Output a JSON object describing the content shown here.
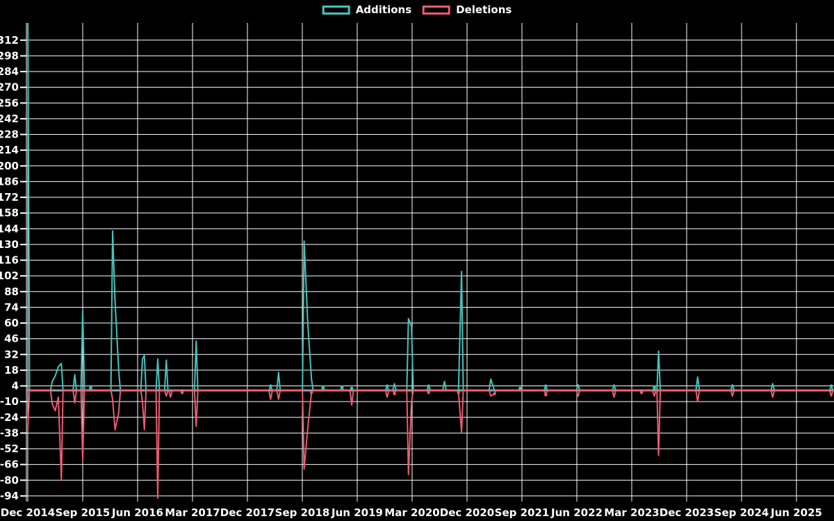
{
  "legend": {
    "additions_label": "Additions",
    "deletions_label": "Deletions"
  },
  "colors": {
    "background": "#000000",
    "grid": "#ffffff",
    "axis_text": "#ffffff",
    "zero_line": "#8ba3af",
    "additions": "#45c4bc",
    "deletions": "#ef5b70"
  },
  "chart_data": {
    "type": "line",
    "title": "",
    "xlabel": "",
    "ylabel": "",
    "legend_position": "top-center",
    "grid": true,
    "x_unit": "months since Dec 2014",
    "x_tick_labels": [
      "Dec 2014",
      "Sep 2015",
      "Jun 2016",
      "Mar 2017",
      "Dec 2017",
      "Sep 2018",
      "Jun 2019",
      "Mar 2020",
      "Dec 2020",
      "Sep 2021",
      "Jun 2022",
      "Mar 2023",
      "Dec 2023",
      "Sep 2024",
      "Jun 2025"
    ],
    "x_tick_months": [
      0,
      9,
      18,
      27,
      36,
      45,
      54,
      63,
      72,
      81,
      90,
      99,
      108,
      117,
      126
    ],
    "y_tick_labels": [
      312,
      298,
      284,
      270,
      256,
      242,
      228,
      214,
      200,
      186,
      172,
      158,
      144,
      130,
      116,
      102,
      88,
      74,
      60,
      46,
      32,
      18,
      4,
      -10,
      -24,
      -38,
      -52,
      -66,
      -80,
      -94
    ],
    "ylim": [
      -99,
      327
    ],
    "series": [
      {
        "name": "Additions",
        "color": "#45c4bc",
        "points": [
          {
            "m": 0,
            "v": 340
          },
          {
            "m": 4.0,
            "v": 8
          },
          {
            "m": 4.5,
            "v": 13
          },
          {
            "m": 5.0,
            "v": 21
          },
          {
            "m": 5.5,
            "v": 24
          },
          {
            "m": 7.7,
            "v": 14
          },
          {
            "m": 9.0,
            "v": 71
          },
          {
            "m": 10.3,
            "v": 3
          },
          {
            "m": 13.9,
            "v": 142
          },
          {
            "m": 14.3,
            "v": 80
          },
          {
            "m": 14.9,
            "v": 18
          },
          {
            "m": 18.8,
            "v": 28
          },
          {
            "m": 19.1,
            "v": 31
          },
          {
            "m": 21.3,
            "v": 28
          },
          {
            "m": 22.7,
            "v": 27
          },
          {
            "m": 23.4,
            "v": 0
          },
          {
            "m": 25.3,
            "v": 0
          },
          {
            "m": 27.6,
            "v": 44
          },
          {
            "m": 39.8,
            "v": 4
          },
          {
            "m": 41.1,
            "v": 16
          },
          {
            "m": 45.3,
            "v": 133
          },
          {
            "m": 45.9,
            "v": 59
          },
          {
            "m": 46.5,
            "v": 10
          },
          {
            "m": 48.4,
            "v": 3
          },
          {
            "m": 51.5,
            "v": 3
          },
          {
            "m": 53.1,
            "v": 2
          },
          {
            "m": 58.9,
            "v": 4
          },
          {
            "m": 60.1,
            "v": 6
          },
          {
            "m": 62.4,
            "v": 64
          },
          {
            "m": 62.9,
            "v": 57
          },
          {
            "m": 65.7,
            "v": 4
          },
          {
            "m": 68.3,
            "v": 8
          },
          {
            "m": 70.6,
            "v": 0
          },
          {
            "m": 71.1,
            "v": 106
          },
          {
            "m": 75.9,
            "v": 10
          },
          {
            "m": 76.5,
            "v": 0
          },
          {
            "m": 80.7,
            "v": 2
          },
          {
            "m": 84.9,
            "v": 4
          },
          {
            "m": 90.2,
            "v": 5
          },
          {
            "m": 96.1,
            "v": 5
          },
          {
            "m": 100.6,
            "v": 0
          },
          {
            "m": 102.7,
            "v": 3
          },
          {
            "m": 103.4,
            "v": 35
          },
          {
            "m": 109.8,
            "v": 12
          },
          {
            "m": 115.5,
            "v": 5
          },
          {
            "m": 122.1,
            "v": 6
          },
          {
            "m": 131.7,
            "v": 4
          }
        ]
      },
      {
        "name": "Deletions",
        "color": "#ef5b70",
        "points": [
          {
            "m": 0,
            "v": -34
          },
          {
            "m": 4.0,
            "v": -12
          },
          {
            "m": 4.5,
            "v": -18
          },
          {
            "m": 5.0,
            "v": -6
          },
          {
            "m": 5.5,
            "v": -80
          },
          {
            "m": 7.7,
            "v": -11
          },
          {
            "m": 9.0,
            "v": -62
          },
          {
            "m": 13.9,
            "v": -8
          },
          {
            "m": 14.3,
            "v": -35
          },
          {
            "m": 14.9,
            "v": -20
          },
          {
            "m": 18.8,
            "v": -10
          },
          {
            "m": 19.1,
            "v": -35
          },
          {
            "m": 21.3,
            "v": -96
          },
          {
            "m": 22.7,
            "v": -5
          },
          {
            "m": 23.4,
            "v": -6
          },
          {
            "m": 25.3,
            "v": -2
          },
          {
            "m": 27.6,
            "v": -32
          },
          {
            "m": 39.8,
            "v": -8
          },
          {
            "m": 41.1,
            "v": -8
          },
          {
            "m": 45.3,
            "v": -70
          },
          {
            "m": 45.9,
            "v": -33
          },
          {
            "m": 46.5,
            "v": -2
          },
          {
            "m": 53.1,
            "v": -13
          },
          {
            "m": 58.9,
            "v": -6
          },
          {
            "m": 60.1,
            "v": -3
          },
          {
            "m": 62.4,
            "v": -75
          },
          {
            "m": 62.9,
            "v": -10
          },
          {
            "m": 65.7,
            "v": -2
          },
          {
            "m": 70.6,
            "v": -2
          },
          {
            "m": 71.1,
            "v": -37
          },
          {
            "m": 75.9,
            "v": -5
          },
          {
            "m": 76.5,
            "v": -3
          },
          {
            "m": 84.9,
            "v": -4
          },
          {
            "m": 90.2,
            "v": -5
          },
          {
            "m": 96.1,
            "v": -6
          },
          {
            "m": 100.6,
            "v": -2
          },
          {
            "m": 102.7,
            "v": -5
          },
          {
            "m": 103.4,
            "v": -58
          },
          {
            "m": 109.8,
            "v": -10
          },
          {
            "m": 115.5,
            "v": -5
          },
          {
            "m": 122.1,
            "v": -6
          },
          {
            "m": 131.7,
            "v": -5
          }
        ]
      }
    ]
  }
}
